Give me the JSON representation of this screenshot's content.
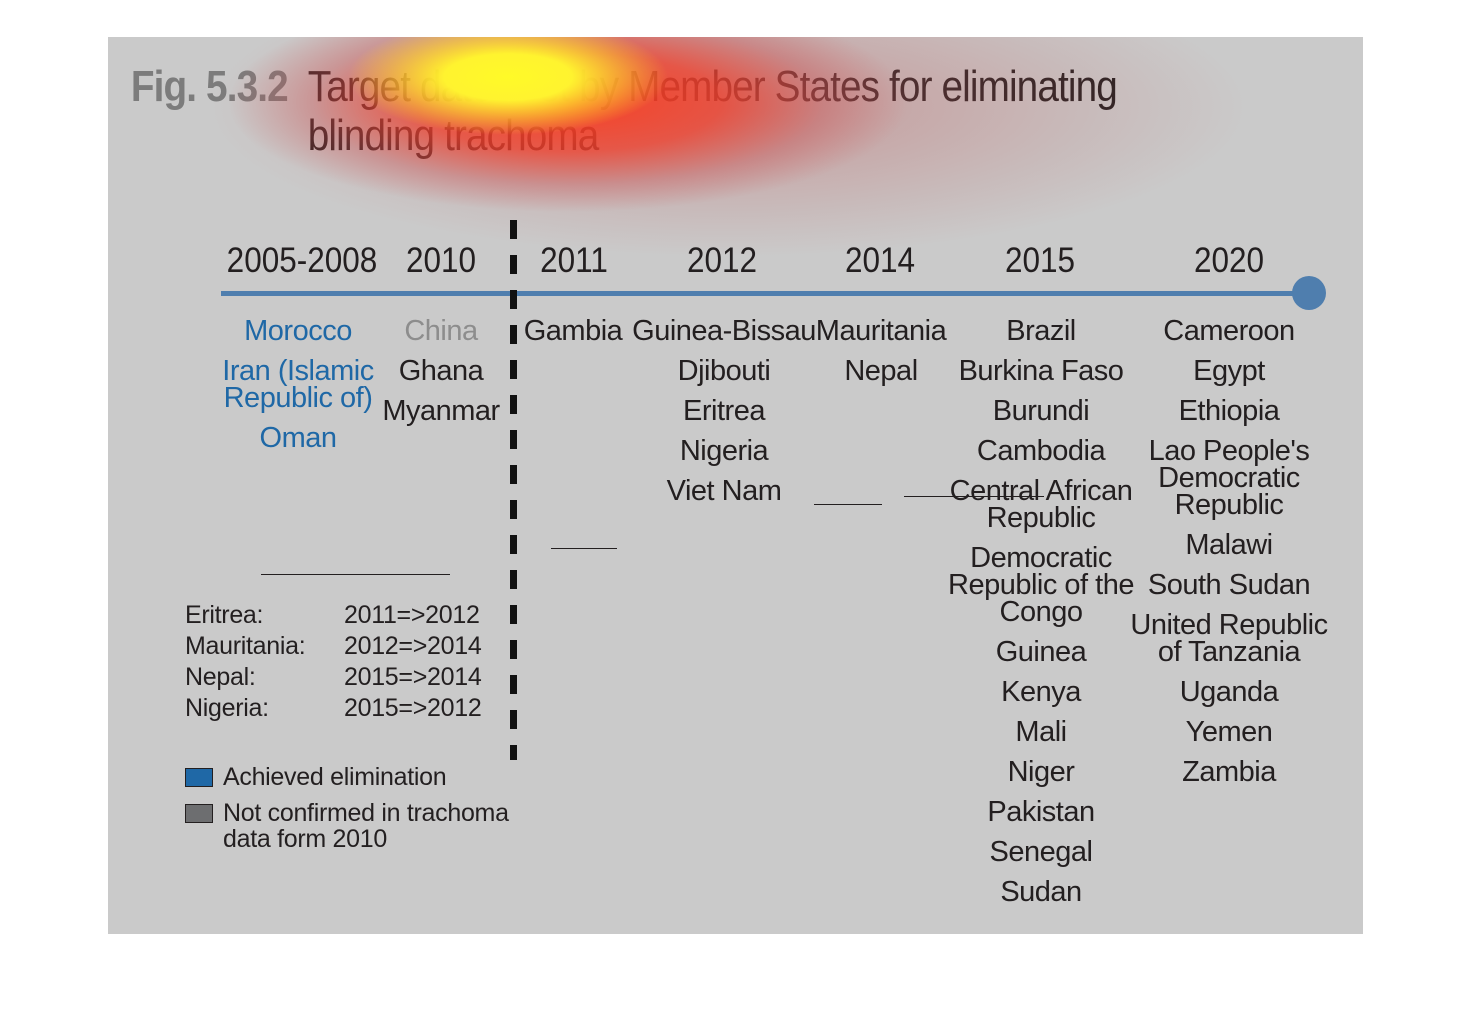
{
  "figure": {
    "number": "Fig. 5.3.2",
    "title_line1": "Target dates set by Member States for eliminating",
    "title_line2": "blinding trachoma"
  },
  "timeline": {
    "years": [
      "2005-2008",
      "2010",
      "2011",
      "2012",
      "2014",
      "2015",
      "2020"
    ],
    "columns": [
      {
        "year": "2005-2008",
        "countries": [
          {
            "name": "Morocco",
            "status": "achieved"
          },
          {
            "name": "Iran (Islamic",
            "name2": "Republic of)",
            "status": "achieved"
          },
          {
            "name": "Oman",
            "status": "achieved"
          }
        ]
      },
      {
        "year": "2010",
        "countries": [
          {
            "name": "China",
            "status": "not-confirmed"
          },
          {
            "name": "Ghana",
            "status": "target"
          },
          {
            "name": "Myanmar",
            "status": "target"
          }
        ]
      },
      {
        "year": "2011",
        "countries": [
          {
            "name": "Gambia",
            "status": "target"
          }
        ]
      },
      {
        "year": "2012",
        "countries": [
          {
            "name": "Guinea-Bissau",
            "status": "target"
          },
          {
            "name": "Djibouti",
            "status": "target"
          },
          {
            "name": "Eritrea",
            "status": "target"
          },
          {
            "name": "Nigeria",
            "status": "target"
          },
          {
            "name": "Viet Nam",
            "status": "target"
          }
        ]
      },
      {
        "year": "2014",
        "countries": [
          {
            "name": "Mauritania",
            "status": "target"
          },
          {
            "name": "Nepal",
            "status": "target"
          }
        ]
      },
      {
        "year": "2015",
        "countries": [
          {
            "name": "Brazil",
            "status": "target"
          },
          {
            "name": "Burkina Faso",
            "status": "target"
          },
          {
            "name": "Burundi",
            "status": "target"
          },
          {
            "name": "Cambodia",
            "status": "target"
          },
          {
            "name": "Central African",
            "name2": "Republic",
            "status": "target"
          },
          {
            "name": "Democratic",
            "name2": "Republic of the",
            "name3": "Congo",
            "status": "target"
          },
          {
            "name": "Guinea",
            "status": "target"
          },
          {
            "name": "Kenya",
            "status": "target"
          },
          {
            "name": "Mali",
            "status": "target"
          },
          {
            "name": "Niger",
            "status": "target"
          },
          {
            "name": "Pakistan",
            "status": "target"
          },
          {
            "name": "Senegal",
            "status": "target"
          },
          {
            "name": "Sudan",
            "status": "target"
          }
        ]
      },
      {
        "year": "2020",
        "countries": [
          {
            "name": "Cameroon",
            "status": "target"
          },
          {
            "name": "Egypt",
            "status": "target"
          },
          {
            "name": "Ethiopia",
            "status": "target"
          },
          {
            "name": "Lao People's",
            "name2": "Democratic",
            "name3": "Republic",
            "status": "target"
          },
          {
            "name": "Malawi",
            "status": "target"
          },
          {
            "name": "South Sudan",
            "status": "target"
          },
          {
            "name": "United Republic",
            "name2": "of Tanzania",
            "status": "target"
          },
          {
            "name": "Uganda",
            "status": "target"
          },
          {
            "name": "Yemen",
            "status": "target"
          },
          {
            "name": "Zambia",
            "status": "target"
          }
        ]
      }
    ]
  },
  "changes": [
    {
      "country": "Eritrea:",
      "change": "2011=>2012"
    },
    {
      "country": "Mauritania:",
      "change": "2012=>2014"
    },
    {
      "country": "Nepal:",
      "change": "2015=>2014"
    },
    {
      "country": "Nigeria:",
      "change": "2015=>2012"
    }
  ],
  "legend": [
    {
      "label": "Achieved elimination",
      "color": "#1f68a6"
    },
    {
      "label": "Not confirmed in trachoma",
      "label2": "data form 2010",
      "color": "#6d6e70"
    }
  ],
  "colors": {
    "panel": "#cacaca",
    "axis": "#4f7eae",
    "achieved_text": "#1f68a6",
    "not_confirmed_text": "#8d8d8d"
  }
}
